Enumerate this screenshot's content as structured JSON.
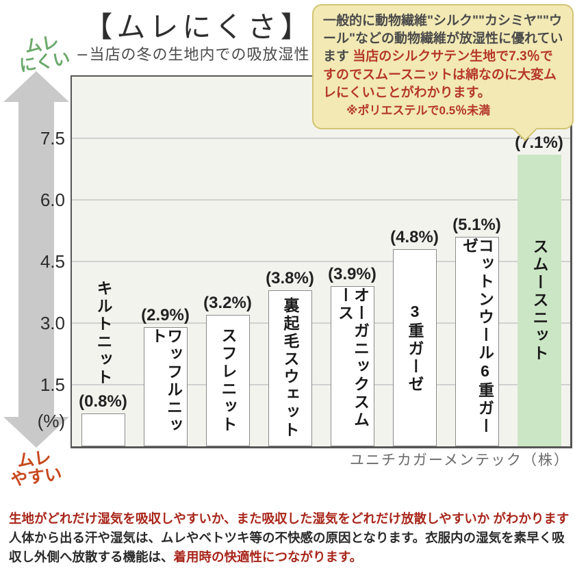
{
  "header": {
    "title": "【ムレにくさ】",
    "subtitle": "−当店の冬の生地内での吸放湿性 -"
  },
  "axis": {
    "top_label_1": "ムレ",
    "top_label_2": "にくい",
    "bottom_label_1": "ムレ",
    "bottom_label_2": "やすい"
  },
  "chart_data": {
    "type": "bar",
    "title": "ムレにくさ −当店の冬の生地内での吸放湿性-",
    "categories": [
      "キルトニット",
      "ワッフルニット",
      "スフレニット",
      "裏起毛スウェット",
      "オーガニックスムース",
      "3重ガーゼ",
      "コットンウール6重ガーゼ",
      "スムースニット"
    ],
    "values": [
      0.8,
      2.9,
      3.2,
      3.8,
      3.9,
      4.8,
      5.1,
      7.1
    ],
    "value_labels": [
      "(0.8%)",
      "(2.9%)",
      "(3.2%)",
      "(3.8%)",
      "(3.9%)",
      "(4.8%)",
      "(5.1%)",
      "(7.1%)"
    ],
    "ylabel": "(%)",
    "yticks": [
      "7.5",
      "6.0",
      "4.5",
      "3.0",
      "1.5"
    ],
    "ylim": [
      0,
      9
    ],
    "grid": true,
    "legend": false,
    "highlight_index": 7,
    "bar_color": "#ffffff",
    "highlight_color": "#cbe6c5",
    "label_outside_indices": [
      0
    ]
  },
  "annotation": {
    "text_gray": "一般的に動物繊維\"シルク\"\"カシミヤ\"\"ウール\"などの動物繊維が放湿性に優れています ",
    "text_red": "当店のシルクサテン生地で7.3％ですのでスムースニットは綿なのに大変ムレにくいことがわかります。",
    "text_note": "※ポリエステルで0.5％未満"
  },
  "attribution": "ユニチカガーメンテック（株）",
  "footer": {
    "line1": "生地がどれだけ湿気を吸収しやすいか、また吸収した湿気をどれだけ放散しやすいか がわかります",
    "line2_black": "人体から出る汗や湿気は、ムレやベトツキ等の不快感の原因となります。衣服内の湿気を素早く吸収し外側へ放散する機能は、",
    "line2_red": "着用時の快適性につながります。"
  },
  "colors": {
    "highlight_bar": "#cbe6c5",
    "plot_bg": "#f3f3ee",
    "plot_border": "#565656",
    "gridline": "#d0d0d0",
    "arrow_gray": "#c9c9c9",
    "caption_green": "#6aa96a",
    "caption_orange": "#c8481d",
    "bubble_bg": "#f2e9b4",
    "bubble_border": "#d2c474",
    "red_text": "#a8251a",
    "bubble_red_text": "#b5372c"
  }
}
